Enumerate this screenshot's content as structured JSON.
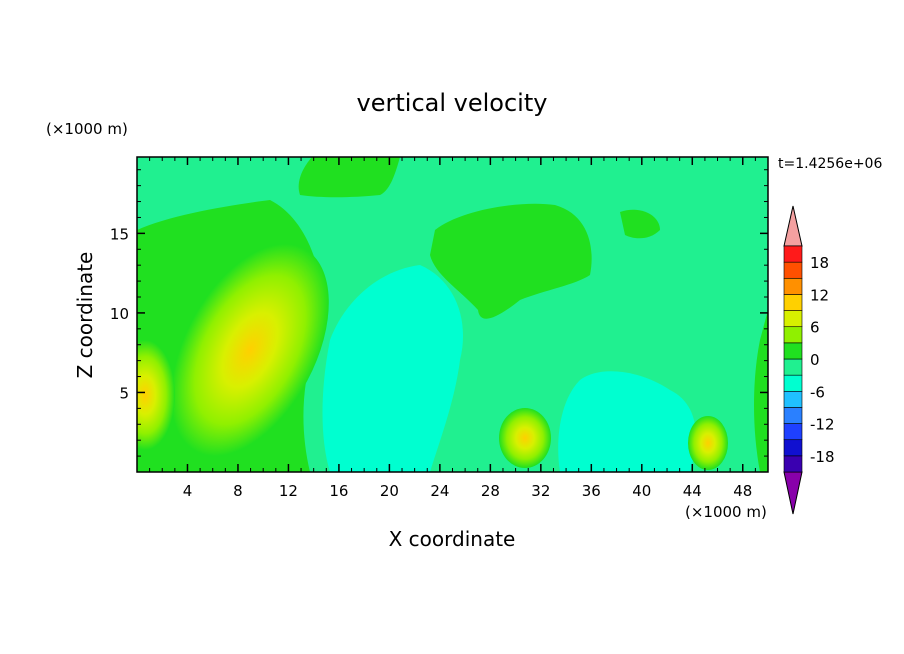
{
  "chart_data": {
    "type": "heatmap",
    "title": "vertical velocity",
    "xlabel": "X coordinate",
    "ylabel": "Z coordinate",
    "x_unit": "(×1000 m)",
    "y_unit": "(×1000 m)",
    "time_label": "t=1.4256e+06",
    "xlim": [
      0,
      50
    ],
    "ylim": [
      0,
      19.8
    ],
    "xticks": [
      4,
      8,
      12,
      16,
      20,
      24,
      28,
      32,
      36,
      40,
      44,
      48
    ],
    "yticks": [
      5,
      10,
      15
    ],
    "colorbar": {
      "ticks": [
        18,
        12,
        6,
        0,
        -6,
        -12,
        -18
      ],
      "levels": [
        -21,
        -18,
        -15,
        -12,
        -9,
        -6,
        -3,
        0,
        3,
        6,
        9,
        12,
        15,
        18,
        21
      ],
      "colors": [
        "#8800aa",
        "#3a00b0",
        "#1010d0",
        "#1e40ff",
        "#2a80ff",
        "#20c0ff",
        "#00ffd0",
        "#20f090",
        "#20e020",
        "#90f000",
        "#d8f000",
        "#ffd000",
        "#ff9000",
        "#ff5000",
        "#ff1a1a",
        "#f4a0a0"
      ],
      "extend": "both"
    },
    "features": [
      {
        "x": 8.5,
        "z": 6.5,
        "w": 3.0,
        "peak": 8
      },
      {
        "x": 1.0,
        "z": 4.5,
        "w": 1.0,
        "peak": 6
      },
      {
        "x": 31.0,
        "z": 2.3,
        "w": 1.0,
        "peak": 7
      },
      {
        "x": 45.5,
        "z": 2.0,
        "w": 0.8,
        "peak": 7
      },
      {
        "x": 19.5,
        "z": 7.0,
        "w": 3.5,
        "peak": -4
      },
      {
        "x": 38.5,
        "z": 4.0,
        "w": 4.0,
        "peak": -2
      },
      {
        "x": 30.0,
        "z": 14.0,
        "w": 4.0,
        "peak": 2
      }
    ]
  }
}
